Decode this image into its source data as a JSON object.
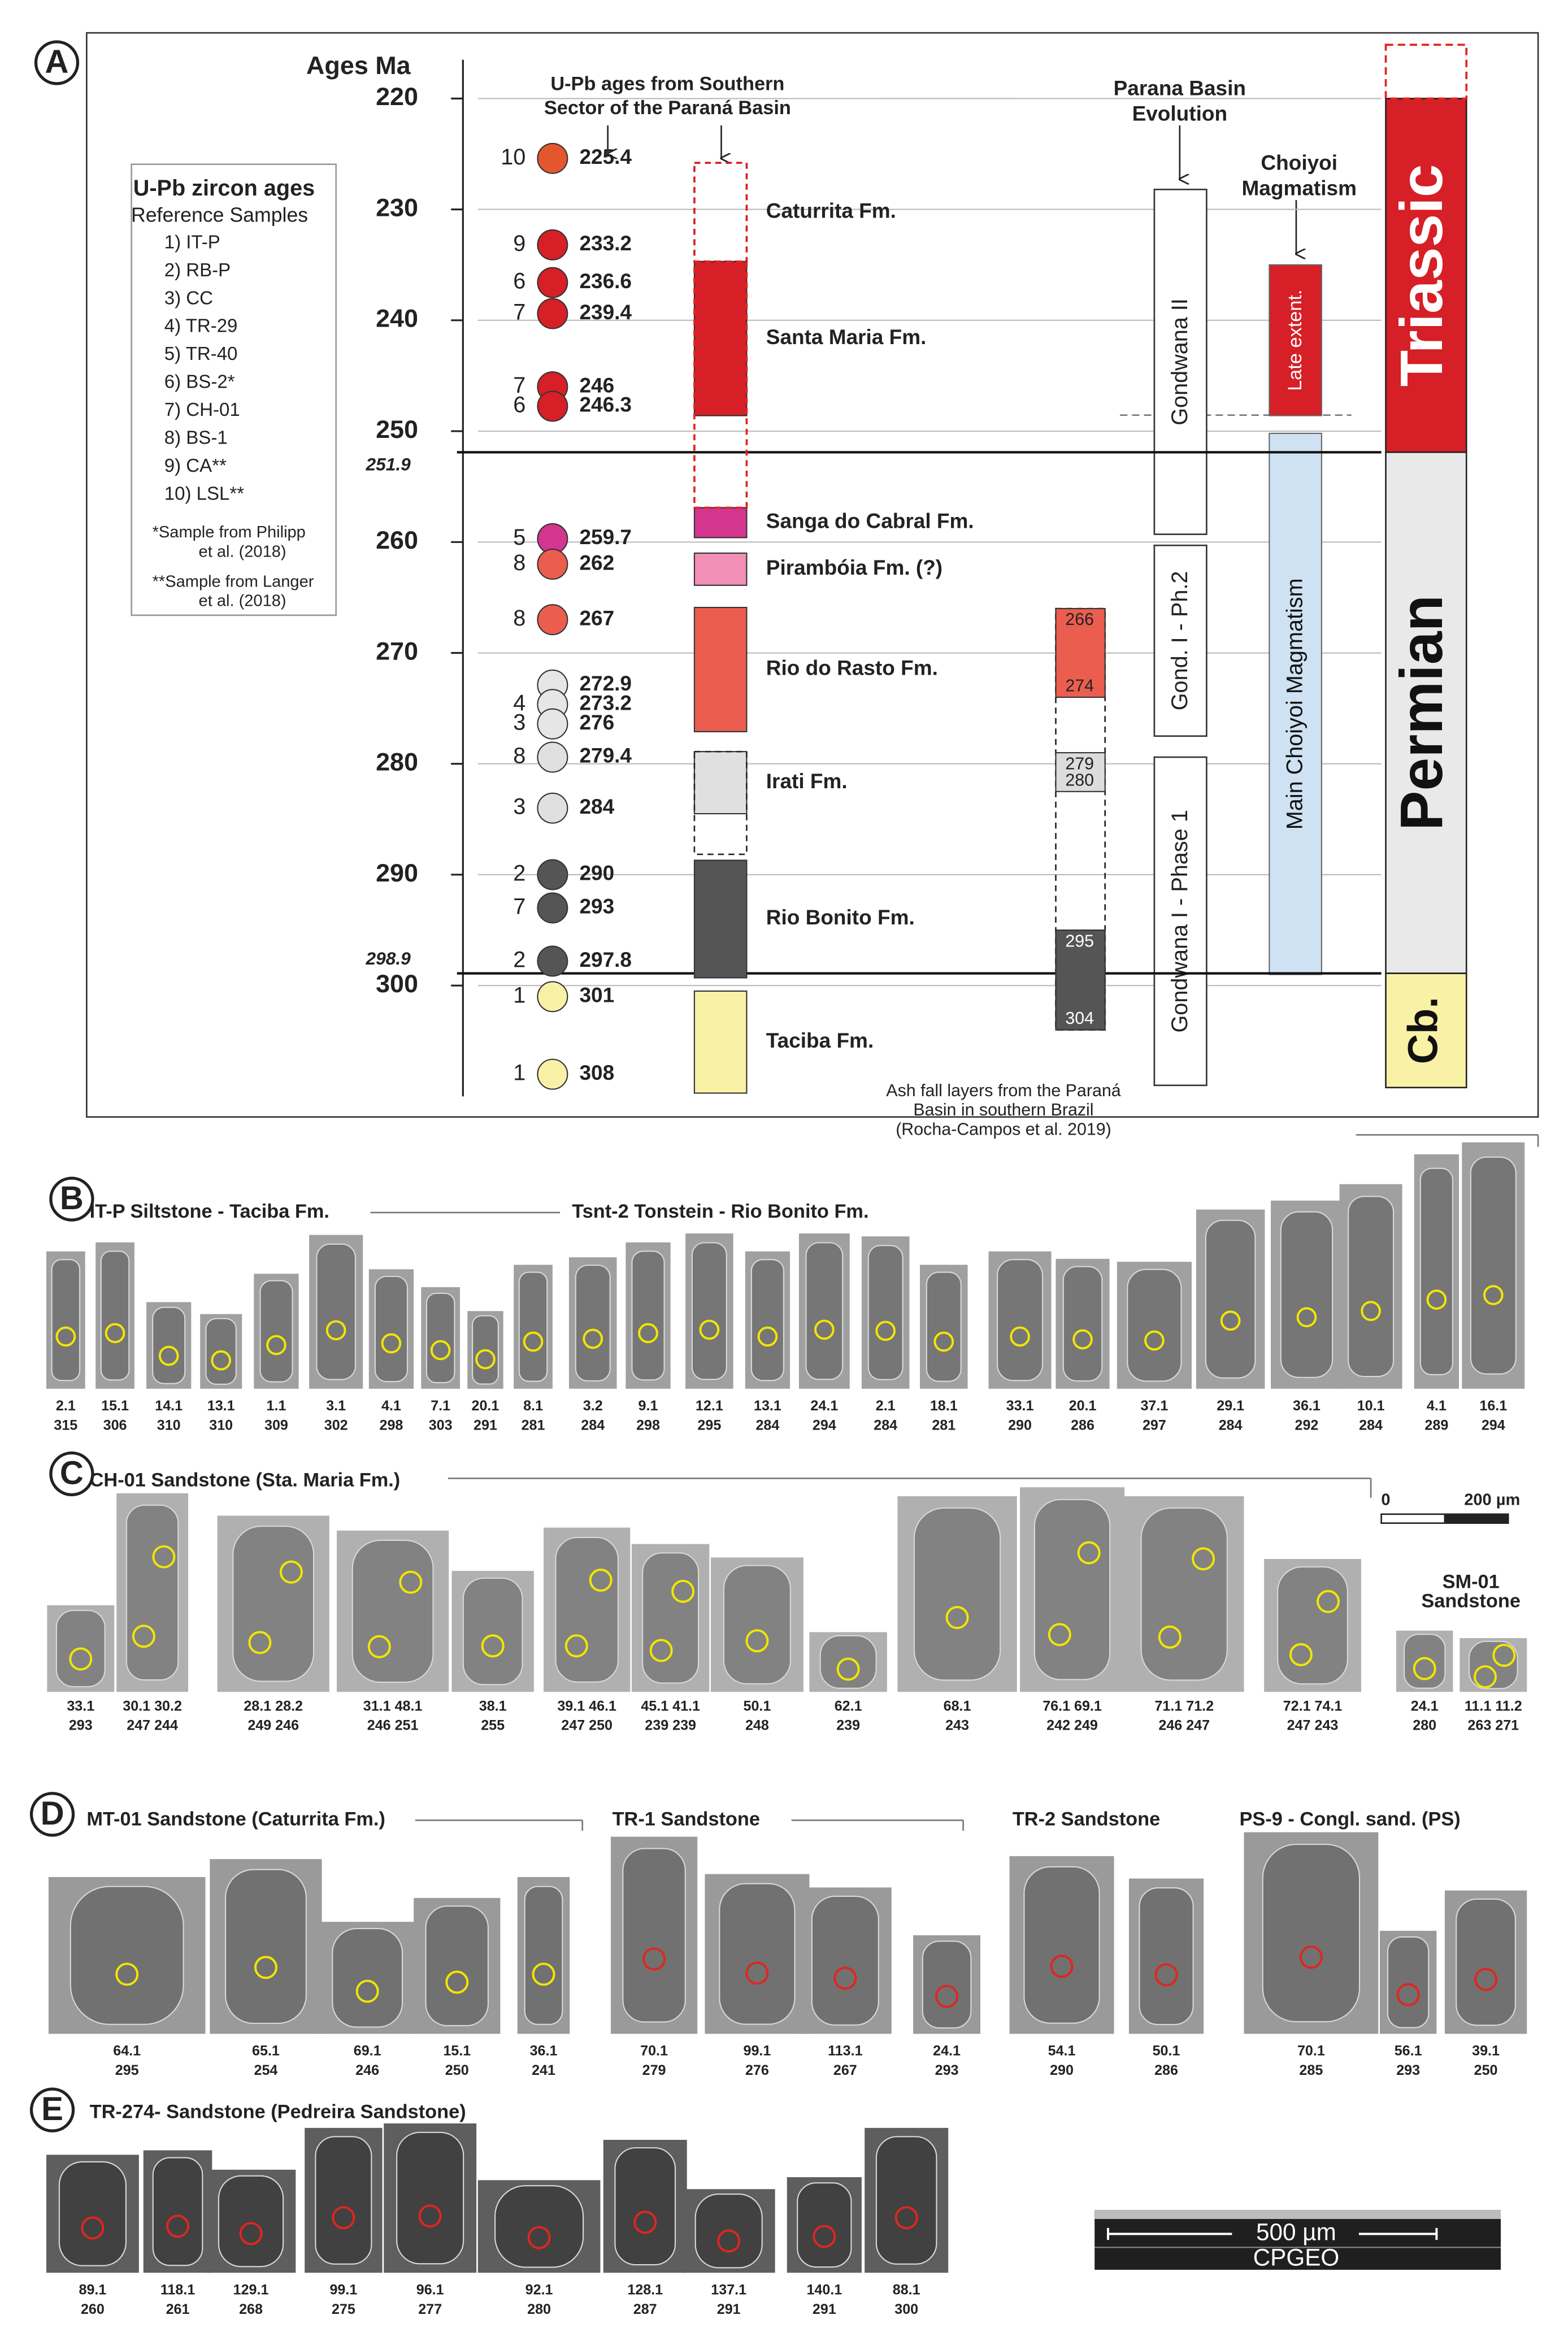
{
  "figure": {
    "panel_a": {
      "label": "A",
      "axis_title": "Ages Ma",
      "ylim": [
        216.5,
        310
      ],
      "yticks": [
        220,
        230,
        240,
        250,
        260,
        270,
        280,
        290,
        300
      ],
      "boundaries": [
        251.9,
        298.9
      ],
      "header": [
        "U-Pb ages from Southern",
        "Sector of the Paraná Basin"
      ],
      "samples": [
        {
          "sample": "10",
          "age": 225.4,
          "color": "#e4572e"
        },
        {
          "sample": "9",
          "age": 233.2,
          "color": "#d61f26"
        },
        {
          "sample": "6",
          "age": 236.6,
          "color": "#d61f26"
        },
        {
          "sample": "7",
          "age": 239.4,
          "color": "#d61f26"
        },
        {
          "sample": "7",
          "age": 246,
          "color": "#d61f26"
        },
        {
          "sample": "6",
          "age": 246.3,
          "color": "#d61f26"
        },
        {
          "sample": "5",
          "age": 259.7,
          "color": "#d3358f"
        },
        {
          "sample": "8",
          "age": 262,
          "color": "#eb5e4f"
        },
        {
          "sample": "8",
          "age": 267,
          "color": "#eb5e4f"
        },
        {
          "sample": null,
          "age": 272.9,
          "color": "#e6e6e6"
        },
        {
          "sample": "4",
          "age": 273.2,
          "color": "#e6e6e6"
        },
        {
          "sample": "3",
          "age": 276,
          "color": "#e6e6e6"
        },
        {
          "sample": "8",
          "age": 279.4,
          "color": "#e0e0e0"
        },
        {
          "sample": "3",
          "age": 284,
          "color": "#e0e0e0"
        },
        {
          "sample": "2",
          "age": 290,
          "color": "#555555"
        },
        {
          "sample": "7",
          "age": 293,
          "color": "#555555"
        },
        {
          "sample": "2",
          "age": 297.8,
          "color": "#555555"
        },
        {
          "sample": "1",
          "age": 301,
          "color": "#f9f1a5"
        },
        {
          "sample": "1",
          "age": 308,
          "color": "#f9f1a5"
        }
      ],
      "formations": [
        {
          "name": "Caturrita Fm.",
          "range": [
            225.8,
            234.7
          ],
          "color": "#d61f26",
          "dashed": true
        },
        {
          "name": "Santa Maria Fm.",
          "range": [
            234.7,
            248.6
          ],
          "color": "#d61f26",
          "dashed": false
        },
        {
          "name": "Sanga do Cabral Fm.",
          "range": [
            256.9,
            259.6
          ],
          "color": "#d3358f",
          "dashed": false
        },
        {
          "name": "Pirambóia Fm. (?)",
          "range": [
            261,
            263.9
          ],
          "color": "#f18fb6",
          "dashed": false
        },
        {
          "name": "Rio do Rasto Fm.",
          "range": [
            265.9,
            277.1
          ],
          "color": "#eb5e4f",
          "dashed": false
        },
        {
          "name": "Irati Fm.",
          "range": [
            278.9,
            284.5
          ],
          "color": "#e0e0e0",
          "dashed": false
        },
        {
          "name": "Rio Bonito Fm.",
          "range": [
            288.7,
            299.3
          ],
          "color": "#555555",
          "dashed": false
        },
        {
          "name": "Taciba Fm.",
          "range": [
            300.5,
            309.7
          ],
          "color": "#f9f1a5",
          "dashed": false
        }
      ],
      "ash_fall": {
        "layers": [
          {
            "range": [
              266,
              274
            ],
            "color": "#eb5e4f"
          },
          {
            "range": [
              279,
              280
            ],
            "color": "#dcdcdc"
          },
          {
            "range": [
              295,
              304
            ],
            "color": "#555555"
          }
        ],
        "caption": [
          "Ash fall layers from the Paraná",
          "Basin in southern Brazil",
          "(Rocha-Campos et al. 2019)"
        ]
      },
      "evolution": {
        "header": [
          "Parana Basin",
          "Evolution"
        ],
        "stages": [
          {
            "name": "Gondwana II",
            "range": [
              228.2,
              259.3
            ]
          },
          {
            "name": "Gond. I - Ph.2",
            "range": [
              260.3,
              277.5
            ]
          },
          {
            "name": "Gondwana I - Phase 1",
            "range": [
              279.4,
              309
            ]
          }
        ]
      },
      "choiyoi": {
        "header": [
          "Choiyoi",
          "Magmatism"
        ],
        "phases": [
          {
            "name": "Late extent.",
            "range": [
              235,
              248.6
            ],
            "color": "#d61f26"
          },
          {
            "name": "Main Choiyoi Magmatism",
            "range": [
              250.2,
              299
            ],
            "color": "#cfe2f3"
          }
        ]
      },
      "periods": [
        {
          "name": "Triassic",
          "range": [
            220,
            251.9
          ],
          "color": "#d61f26"
        },
        {
          "name": "Permian",
          "range": [
            251.9,
            298.9
          ],
          "color": "#e9e9e9"
        },
        {
          "name": "Cb.",
          "range": [
            298.9,
            309.2
          ],
          "color": "#f9f1a5"
        }
      ],
      "legend": {
        "title": "U-Pb zircon ages",
        "subtitle": "Reference Samples",
        "items": [
          "1) IT-P",
          "2) RB-P",
          "3) CC",
          "4) TR-29",
          "5) TR-40",
          "6) BS-2*",
          "7) CH-01",
          "8) BS-1",
          "9) CA**",
          "10) LSL**"
        ],
        "notes": [
          [
            "*Sample from Philipp",
            "et al. (2018)"
          ],
          [
            "**Sample from Langer",
            "et al. (2018)"
          ]
        ]
      }
    },
    "panels": [
      {
        "label": "B",
        "groups": [
          {
            "title": [
              "IT-P Siltstone - Taciba Fm."
            ],
            "spot_color": "#f2e600",
            "grains": [
              {
                "spot": "2.1",
                "age": 315
              },
              {
                "spot": "15.1",
                "age": 306
              },
              {
                "spot": "14.1",
                "age": 310
              },
              {
                "spot": "13.1",
                "age": 310
              },
              {
                "spot": "1.1",
                "age": 309
              },
              {
                "spot": "3.1",
                "age": 302
              },
              {
                "spot": "4.1",
                "age": 298
              },
              {
                "spot": "7.1",
                "age": 303
              },
              {
                "spot": "20.1",
                "age": 291
              },
              {
                "spot": "8.1",
                "age": 281
              }
            ]
          },
          {
            "title": [
              "Tsnt-2 Tonstein - Rio Bonito Fm."
            ],
            "spot_color": "#f2e600",
            "grains": [
              {
                "spot": "3.2",
                "age": 284
              },
              {
                "spot": "9.1",
                "age": 298
              },
              {
                "spot": "12.1",
                "age": 295
              },
              {
                "spot": "13.1",
                "age": 284
              },
              {
                "spot": "24.1",
                "age": 294
              },
              {
                "spot": "2.1",
                "age": 284
              },
              {
                "spot": "18.1",
                "age": 281
              },
              {
                "spot": "33.1",
                "age": 290
              },
              {
                "spot": "20.1",
                "age": 286
              },
              {
                "spot": "37.1",
                "age": 297
              },
              {
                "spot": "29.1",
                "age": 284
              },
              {
                "spot": "36.1",
                "age": 292
              },
              {
                "spot": "10.1",
                "age": 284
              },
              {
                "spot": "4.1",
                "age": 289
              },
              {
                "spot": "16.1",
                "age": 294
              }
            ]
          }
        ]
      },
      {
        "label": "C",
        "scale": [
          "0",
          "200 µm"
        ],
        "groups": [
          {
            "title": [
              "CH-01 Sandstone (Sta. Maria Fm.)"
            ],
            "spot_color": "#f2e600",
            "grains": [
              {
                "spot": "33.1",
                "age": 293
              },
              {
                "spot": "30.1 30.2",
                "age": "247 244"
              },
              {
                "spot": "28.1 28.2",
                "age": "249 246"
              },
              {
                "spot": "31.1 48.1",
                "age": "246 251"
              },
              {
                "spot": "38.1",
                "age": 255
              },
              {
                "spot": "39.1 46.1",
                "age": "247 250"
              },
              {
                "spot": "45.1 41.1",
                "age": "239 239"
              },
              {
                "spot": "50.1",
                "age": 248
              },
              {
                "spot": "62.1",
                "age": 239
              },
              {
                "spot": "68.1",
                "age": 243
              },
              {
                "spot": "76.1 69.1",
                "age": "242 249"
              },
              {
                "spot": "71.1 71.2",
                "age": "246 247"
              },
              {
                "spot": "72.1 74.1",
                "age": "247 243"
              }
            ]
          },
          {
            "title": [
              "SM-01",
              "Sandstone"
            ],
            "spot_color": "#f2e600",
            "grains": [
              {
                "spot": "24.1",
                "age": 280
              },
              {
                "spot": "11.1 11.2",
                "age": "263 271"
              }
            ]
          }
        ]
      },
      {
        "label": "D",
        "groups": [
          {
            "title": [
              "MT-01 Sandstone (Caturrita Fm.)"
            ],
            "spot_color": "#f2e600",
            "grains": [
              {
                "spot": "64.1",
                "age": 295
              },
              {
                "spot": "65.1",
                "age": 254
              },
              {
                "spot": "69.1",
                "age": 246
              },
              {
                "spot": "15.1",
                "age": 250
              },
              {
                "spot": "36.1",
                "age": 241
              }
            ]
          },
          {
            "title": [
              "TR-1 Sandstone"
            ],
            "spot_color": "#e0261e",
            "grains": [
              {
                "spot": "70.1",
                "age": 279
              },
              {
                "spot": "99.1",
                "age": 276
              },
              {
                "spot": "113.1",
                "age": 267
              },
              {
                "spot": "24.1",
                "age": 293
              }
            ]
          },
          {
            "title": [
              "TR-2 Sandstone"
            ],
            "spot_color": "#e0261e",
            "grains": [
              {
                "spot": "54.1",
                "age": 290
              },
              {
                "spot": "50.1",
                "age": 286
              }
            ]
          },
          {
            "title": [
              "PS-9 - Congl. sand. (PS)"
            ],
            "spot_color": "#e0261e",
            "grains": [
              {
                "spot": "70.1",
                "age": 285
              },
              {
                "spot": "56.1",
                "age": 293
              },
              {
                "spot": "39.1",
                "age": 250
              }
            ]
          }
        ]
      },
      {
        "label": "E",
        "scale": [
          "500 µm",
          "CPGEO"
        ],
        "groups": [
          {
            "title": [
              "TR-274- Sandstone (Pedreira Sandstone)"
            ],
            "spot_color": "#e0261e",
            "grains": [
              {
                "spot": "89.1",
                "age": 260
              },
              {
                "spot": "118.1",
                "age": 261
              },
              {
                "spot": "129.1",
                "age": 268
              },
              {
                "spot": "99.1",
                "age": 275
              },
              {
                "spot": "96.1",
                "age": 277
              },
              {
                "spot": "92.1",
                "age": 280
              },
              {
                "spot": "128.1",
                "age": 287
              },
              {
                "spot": "137.1",
                "age": 291
              },
              {
                "spot": "140.1",
                "age": 291
              },
              {
                "spot": "88.1",
                "age": 300
              }
            ]
          }
        ]
      }
    ]
  }
}
